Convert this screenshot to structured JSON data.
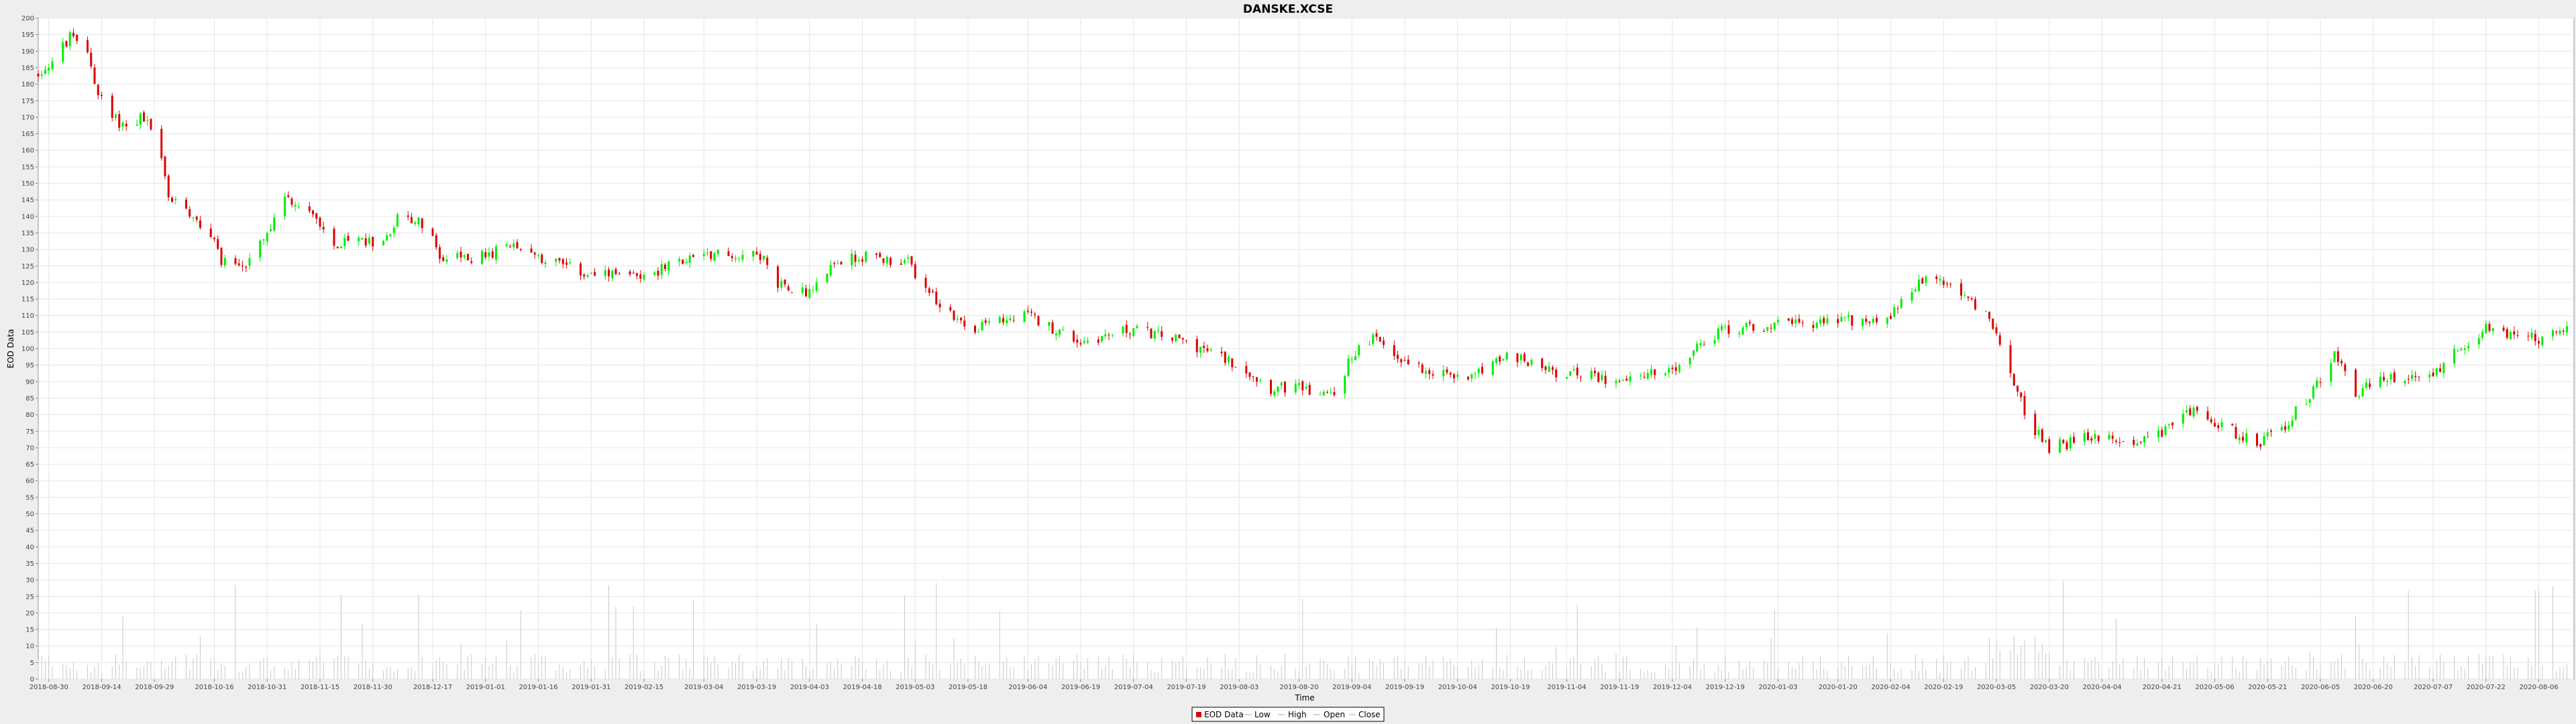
{
  "chart_data": {
    "type": "candlestick",
    "title": "DANSKE.XCSE",
    "xlabel": "Time",
    "ylabel": "EOD Data",
    "ylim": [
      0,
      200
    ],
    "y_tick_step": 5,
    "xlim": [
      "2018-08-27",
      "2020-08-16"
    ],
    "x_ticks": [
      "2018-08-30",
      "2018-09-14",
      "2018-09-29",
      "2018-10-16",
      "2018-10-31",
      "2018-11-15",
      "2018-11-30",
      "2018-12-17",
      "2019-01-01",
      "2019-01-16",
      "2019-01-31",
      "2019-02-15",
      "2019-03-04",
      "2019-03-19",
      "2019-04-03",
      "2019-04-18",
      "2019-05-03",
      "2019-05-18",
      "2019-06-04",
      "2019-06-19",
      "2019-07-04",
      "2019-07-19",
      "2019-08-03",
      "2019-08-20",
      "2019-09-04",
      "2019-09-19",
      "2019-10-04",
      "2019-10-19",
      "2019-11-04",
      "2019-11-19",
      "2019-12-04",
      "2019-12-19",
      "2020-01-03",
      "2020-01-20",
      "2020-02-04",
      "2020-02-19",
      "2020-03-05",
      "2020-03-20",
      "2020-04-04",
      "2020-04-21",
      "2020-05-06",
      "2020-05-21",
      "2020-06-05",
      "2020-06-20",
      "2020-07-07",
      "2020-07-22",
      "2020-08-06"
    ],
    "grid": true,
    "legend_position": "bottom-center",
    "up_color": "#00ee00",
    "down_color": "#dd0000",
    "volume_color": "#c8c8c8",
    "price_anchors": [
      [
        "2018-08-27",
        183
      ],
      [
        "2018-08-31",
        187
      ],
      [
        "2018-09-05",
        194
      ],
      [
        "2018-09-10",
        190
      ],
      [
        "2018-09-13",
        177
      ],
      [
        "2018-09-17",
        170
      ],
      [
        "2018-09-21",
        167
      ],
      [
        "2018-09-25",
        170
      ],
      [
        "2018-09-28",
        167
      ],
      [
        "2018-10-01",
        157
      ],
      [
        "2018-10-03",
        146
      ],
      [
        "2018-10-10",
        141
      ],
      [
        "2018-10-16",
        132
      ],
      [
        "2018-10-18",
        127
      ],
      [
        "2018-10-25",
        125
      ],
      [
        "2018-11-01",
        136
      ],
      [
        "2018-11-05",
        145
      ],
      [
        "2018-11-12",
        143
      ],
      [
        "2018-11-19",
        131
      ],
      [
        "2018-11-26",
        133
      ],
      [
        "2018-12-03",
        132
      ],
      [
        "2018-12-07",
        140
      ],
      [
        "2018-12-14",
        138
      ],
      [
        "2018-12-20",
        127
      ],
      [
        "2019-01-01",
        128
      ],
      [
        "2019-01-10",
        132
      ],
      [
        "2019-01-16",
        128
      ],
      [
        "2019-01-31",
        122
      ],
      [
        "2019-02-15",
        122
      ],
      [
        "2019-03-04",
        129
      ],
      [
        "2019-03-15",
        128
      ],
      [
        "2019-03-19",
        130
      ],
      [
        "2019-03-25",
        120
      ],
      [
        "2019-04-03",
        117
      ],
      [
        "2019-04-10",
        126
      ],
      [
        "2019-04-18",
        128
      ],
      [
        "2019-05-01",
        126
      ],
      [
        "2019-05-06",
        118
      ],
      [
        "2019-05-14",
        110
      ],
      [
        "2019-05-18",
        106
      ],
      [
        "2019-06-04",
        110
      ],
      [
        "2019-06-19",
        102
      ],
      [
        "2019-07-04",
        106
      ],
      [
        "2019-07-19",
        102
      ],
      [
        "2019-08-03",
        95
      ],
      [
        "2019-08-12",
        88
      ],
      [
        "2019-08-20",
        88
      ],
      [
        "2019-08-30",
        86
      ],
      [
        "2019-09-04",
        98
      ],
      [
        "2019-09-10",
        103
      ],
      [
        "2019-09-19",
        96
      ],
      [
        "2019-10-04",
        91
      ],
      [
        "2019-10-19",
        98
      ],
      [
        "2019-11-01",
        93
      ],
      [
        "2019-11-15",
        91
      ],
      [
        "2019-12-04",
        93
      ],
      [
        "2019-12-12",
        101
      ],
      [
        "2019-12-19",
        106
      ],
      [
        "2020-01-03",
        107
      ],
      [
        "2020-01-20",
        108
      ],
      [
        "2020-02-04",
        110
      ],
      [
        "2020-02-14",
        122
      ],
      [
        "2020-02-24",
        117
      ],
      [
        "2020-03-02",
        110
      ],
      [
        "2020-03-05",
        106
      ],
      [
        "2020-03-10",
        88
      ],
      [
        "2020-03-16",
        75
      ],
      [
        "2020-03-20",
        70
      ],
      [
        "2020-04-04",
        74
      ],
      [
        "2020-04-15",
        72
      ],
      [
        "2020-04-21",
        74
      ],
      [
        "2020-04-27",
        82
      ],
      [
        "2020-05-06",
        78
      ],
      [
        "2020-05-18",
        71
      ],
      [
        "2020-05-26",
        77
      ],
      [
        "2020-06-05",
        90
      ],
      [
        "2020-06-09",
        99
      ],
      [
        "2020-06-15",
        86
      ],
      [
        "2020-06-20",
        90
      ],
      [
        "2020-07-07",
        92
      ],
      [
        "2020-07-14",
        100
      ],
      [
        "2020-07-22",
        106
      ],
      [
        "2020-08-06",
        103
      ],
      [
        "2020-08-16",
        106
      ]
    ],
    "volume_range": [
      2,
      30
    ]
  },
  "legend": {
    "items": [
      {
        "label": "EOD Data",
        "color": "#dd0000"
      },
      {
        "label": "Low",
        "color": "#aaaaaa"
      },
      {
        "label": "High",
        "color": "#aaaaaa"
      },
      {
        "label": "Open",
        "color": "#aaaaaa"
      },
      {
        "label": "Close",
        "color": "#aaaaaa"
      }
    ]
  }
}
